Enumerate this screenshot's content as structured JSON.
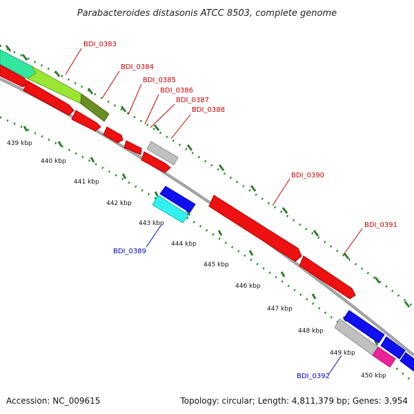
{
  "title": "Parabacteroides distasonis ATCC 8503, complete genome",
  "footer": {
    "accession": "Accession: NC_009615",
    "summary": "Topology: circular; Length: 4,811,379 bp; Genes: 3,954"
  },
  "colors": {
    "backbone": "#8c8c8c",
    "tick_dots": "#1f8a1f",
    "tick_major": "#2f7a2f",
    "forward_label": "#cc0000",
    "reverse_label": "#0000cc"
  },
  "kbp_labels": [
    "439 kbp",
    "440 kbp",
    "441 kbp",
    "442 kbp",
    "443 kbp",
    "444 kbp",
    "445 kbp",
    "446 kbp",
    "447 kbp",
    "448 kbp",
    "449 kbp",
    "450 kbp"
  ],
  "gene_labels": {
    "BDI_0383": "BDI_0383",
    "BDI_0384": "BDI_0384",
    "BDI_0385": "BDI_0385",
    "BDI_0386": "BDI_0386",
    "BDI_0387": "BDI_0387",
    "BDI_0388": "BDI_0388",
    "BDI_0389": "BDI_0389",
    "BDI_0390": "BDI_0390",
    "BDI_0391": "BDI_0391",
    "BDI_0392": "BDI_0392"
  }
}
